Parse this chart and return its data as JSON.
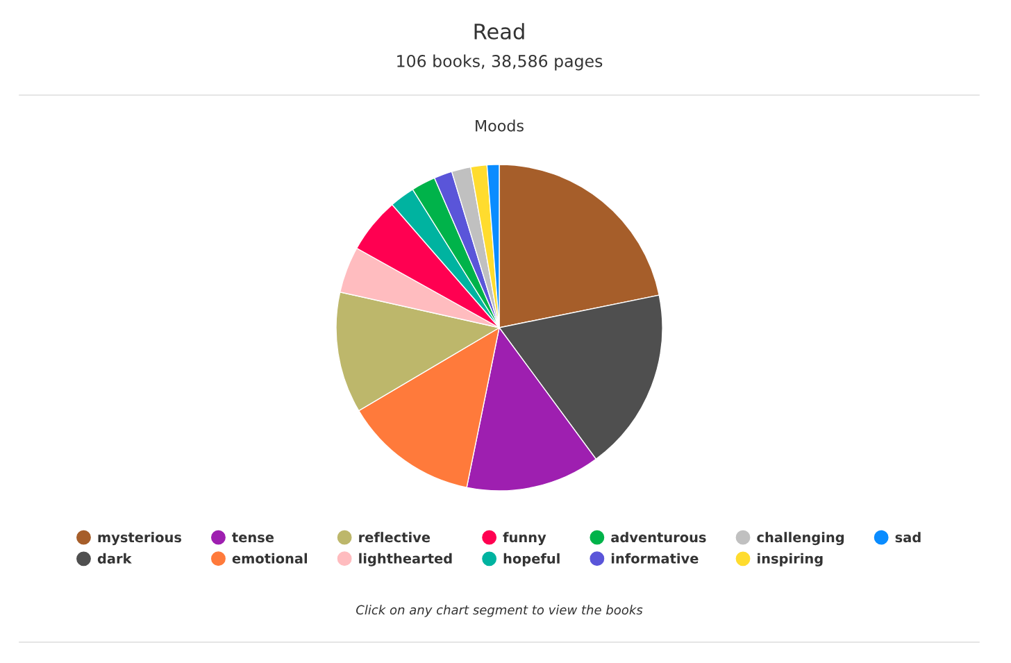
{
  "chart_data": {
    "type": "pie",
    "title": "Read",
    "subtitle": "106 books, 38,586 pages",
    "annotations": [
      "Moods",
      "Click on any chart segment to view the books"
    ],
    "categories": [
      "mysterious",
      "dark",
      "tense",
      "emotional",
      "reflective",
      "lighthearted",
      "funny",
      "hopeful",
      "adventurous",
      "informative",
      "challenging",
      "inspiring",
      "sad"
    ],
    "values": [
      21.8,
      18.1,
      13.3,
      13.3,
      12.0,
      4.6,
      5.5,
      2.5,
      2.4,
      1.8,
      1.9,
      1.6,
      1.2
    ],
    "colors": [
      "#a65e2a",
      "#4f4f4f",
      "#9e1fb0",
      "#ff7a3b",
      "#bdb76b",
      "#ffbcbf",
      "#ff0051",
      "#00b3a0",
      "#00b34a",
      "#5a55d9",
      "#c0c0c0",
      "#ffdc2e",
      "#0a8cff"
    ],
    "legend": "bottom"
  }
}
